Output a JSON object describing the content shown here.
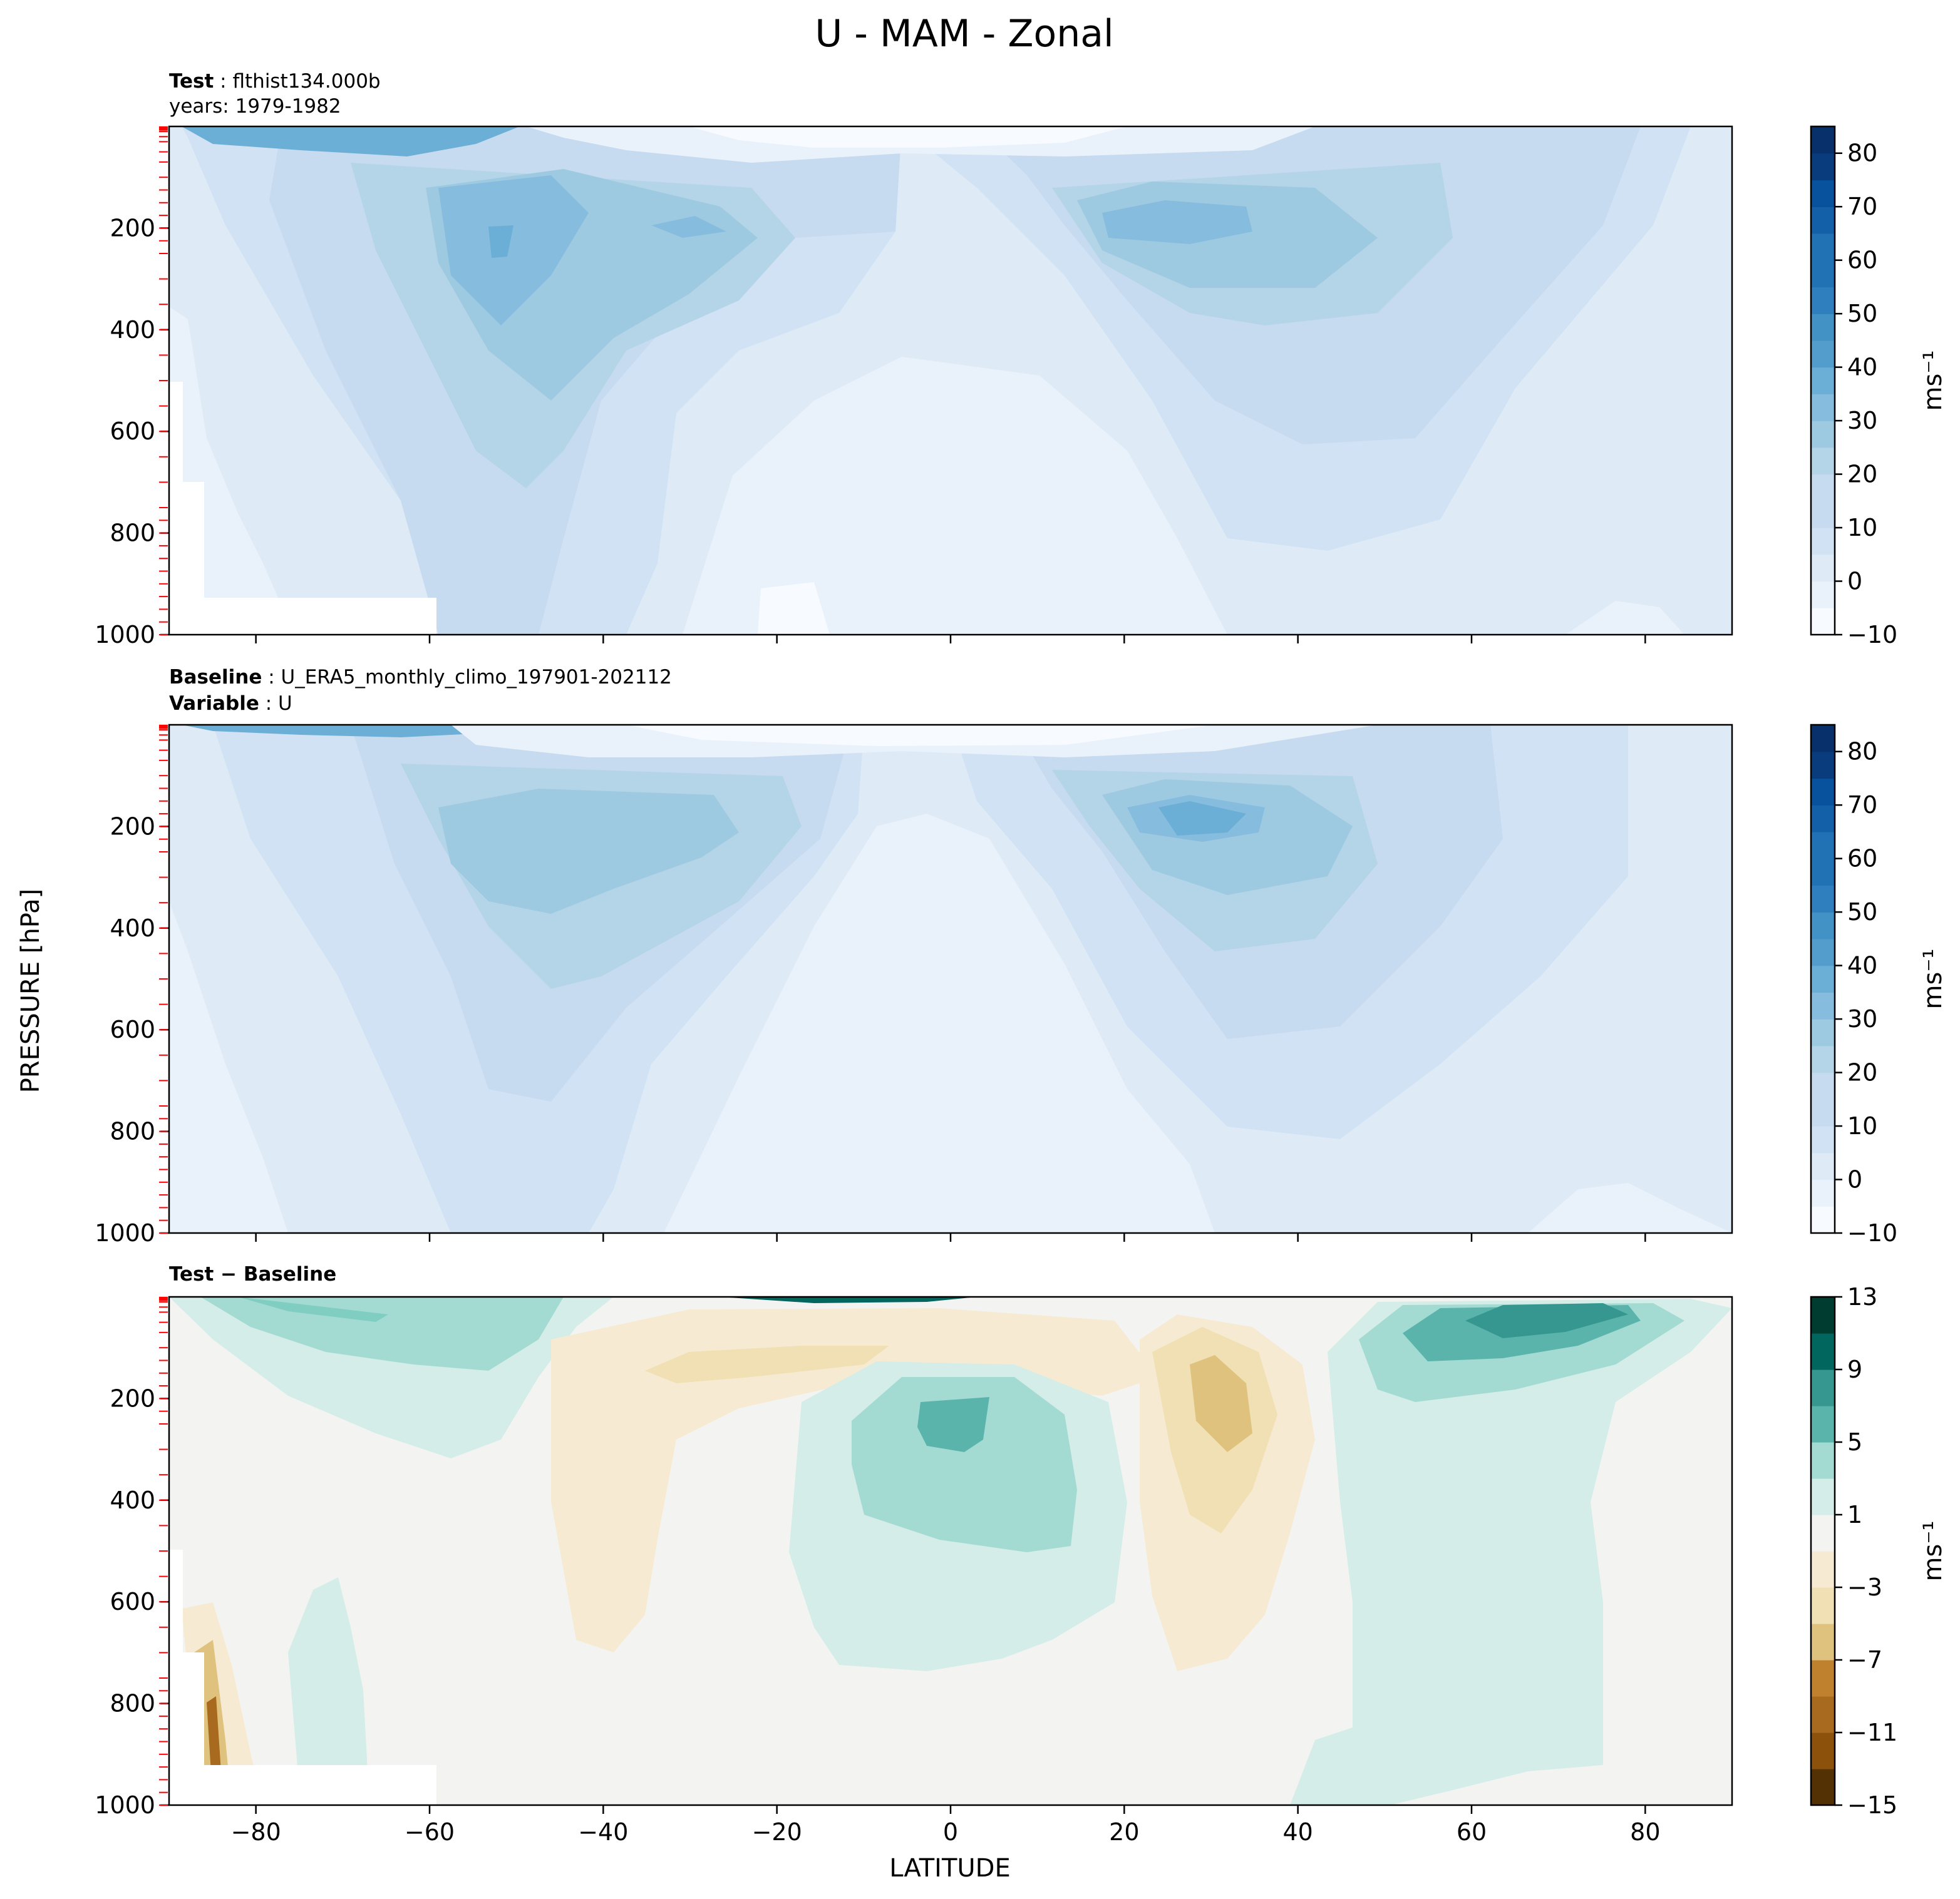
{
  "figure": {
    "title": "U - MAM - Zonal",
    "xlabel": "LATITUDE",
    "ylabel": "PRESSURE [hPa]"
  },
  "colors": {
    "blues": [
      "#f7fbff",
      "#e9f2fb",
      "#deebf7",
      "#d0e2f3",
      "#c6dbef",
      "#b4d4e8",
      "#9ecae1",
      "#86bcdd",
      "#6baed6",
      "#529dcc",
      "#4292c6",
      "#2f7ebd",
      "#2171b5",
      "#1460a8",
      "#08519c",
      "#083c7d",
      "#08306b"
    ],
    "diverging": [
      "#543005",
      "#8c510a",
      "#a86a1e",
      "#bf812d",
      "#d8b365",
      "#dfc27d",
      "#f0e0b3",
      "#f6ebd2",
      "#f3f4f2",
      "#d4ede8",
      "#a3dbd2",
      "#80cdc1",
      "#5ab4ac",
      "#35978f",
      "#01665e",
      "#003c30"
    ],
    "tick_red": "#ff0000"
  },
  "panels": [
    {
      "header_bold_1": "Test",
      "header_text_1": "flthist134.000b",
      "header_bold_2": "",
      "header_text_2": "years: 1979-1982"
    },
    {
      "header_bold_1": "Baseline",
      "header_text_1": "U_ERA5_monthly_climo_197901-202112",
      "header_bold_2": "Variable",
      "header_text_2": "U"
    },
    {
      "header_bold_1": "Test − Baseline",
      "header_text_1": "",
      "header_bold_2": "",
      "header_text_2": ""
    }
  ],
  "chart_data": [
    {
      "type": "contourf",
      "name": "Test",
      "x_field": "latitude",
      "y_field": "pressure",
      "xlim": [
        -90,
        90
      ],
      "ylim": [
        1000,
        0
      ],
      "xticks": [
        -80,
        -60,
        -40,
        -20,
        0,
        20,
        40,
        60,
        80
      ],
      "yticks": [
        200,
        400,
        600,
        800,
        1000
      ],
      "colorbar": {
        "label": "ms⁻¹",
        "levels": [
          -10,
          -5,
          0,
          5,
          10,
          15,
          20,
          25,
          30,
          35,
          40,
          45,
          50,
          55,
          60,
          65,
          70,
          75,
          80,
          85
        ],
        "ticks": [
          -10,
          0,
          10,
          20,
          30,
          40,
          50,
          60,
          70,
          80
        ]
      },
      "features": [
        {
          "kind": "jet",
          "lat": -52,
          "p": 230,
          "value": 45
        },
        {
          "kind": "jet",
          "lat": -30,
          "p": 200,
          "value": 35
        },
        {
          "kind": "jet",
          "lat": 30,
          "p": 190,
          "value": 35
        },
        {
          "kind": "easterly",
          "lat": 5,
          "p": 40,
          "value": -10
        }
      ]
    },
    {
      "type": "contourf",
      "name": "Baseline",
      "x_field": "latitude",
      "y_field": "pressure",
      "xlim": [
        -90,
        90
      ],
      "ylim": [
        1000,
        0
      ],
      "xticks": [
        -80,
        -60,
        -40,
        -20,
        0,
        20,
        40,
        60,
        80
      ],
      "yticks": [
        200,
        400,
        600,
        800,
        1000
      ],
      "colorbar": {
        "label": "ms⁻¹",
        "levels": [
          -10,
          -5,
          0,
          5,
          10,
          15,
          20,
          25,
          30,
          35,
          40,
          45,
          50,
          55,
          60,
          65,
          70,
          75,
          80,
          85
        ],
        "ticks": [
          -10,
          0,
          10,
          20,
          30,
          40,
          50,
          60,
          70,
          80
        ]
      },
      "features": [
        {
          "kind": "jet",
          "lat": -48,
          "p": 220,
          "value": 40
        },
        {
          "kind": "jet",
          "lat": 30,
          "p": 190,
          "value": 40
        },
        {
          "kind": "easterly",
          "lat": 0,
          "p": 40,
          "value": -10
        }
      ]
    },
    {
      "type": "contourf",
      "name": "Test - Baseline",
      "x_field": "latitude",
      "y_field": "pressure",
      "xlim": [
        -90,
        90
      ],
      "ylim": [
        1000,
        0
      ],
      "xticks": [
        -80,
        -60,
        -40,
        -20,
        0,
        20,
        40,
        60,
        80
      ],
      "yticks": [
        200,
        400,
        600,
        800,
        1000
      ],
      "xlabel": "LATITUDE",
      "colorbar": {
        "label": "ms⁻¹",
        "levels": [
          -15,
          -13,
          -11,
          -9,
          -7,
          -5,
          -3,
          -1,
          1,
          3,
          5,
          7,
          9,
          11,
          13
        ],
        "ticks": [
          -15,
          -11,
          -7,
          -3,
          1,
          5,
          9,
          13
        ]
      },
      "features": [
        {
          "kind": "positive",
          "lat": 70,
          "p": 70,
          "value": 9
        },
        {
          "kind": "positive",
          "lat": 0,
          "p": 250,
          "value": 5
        },
        {
          "kind": "positive",
          "lat": -70,
          "p": 60,
          "value": 5
        },
        {
          "kind": "negative",
          "lat": 30,
          "p": 220,
          "value": -5
        },
        {
          "kind": "negative",
          "lat": -30,
          "p": 120,
          "value": -3
        }
      ]
    }
  ]
}
